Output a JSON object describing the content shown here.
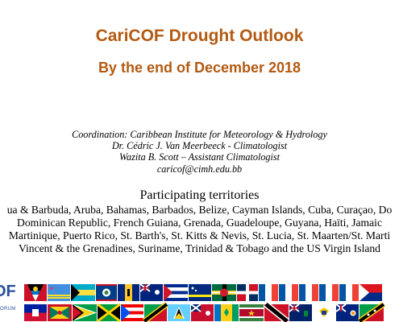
{
  "title": "CariCOF Drought Outlook",
  "subtitle": "By the end of December 2018",
  "credits": {
    "line1": "Coordination: Caribbean Institute for Meteorology & Hydrology",
    "line2": "Dr. Cédric J. Van Meerbeeck - Climatologist",
    "line3": "Wazita B. Scott – Assistant Climatologist",
    "line4": "caricof@cimh.edu.bb"
  },
  "territories": {
    "heading": "Participating territories",
    "lines": [
      "ua & Barbuda, Aruba, Bahamas, Barbados, Belize, Cayman Islands, Cuba, Curaçao, Do",
      "Dominican Republic, French Guiana, Grenada, Guadeloupe, Guyana, Haïti, Jamaic",
      "Martinique, Puerto Rico, St. Barth's, St. Kitts & Nevis, St. Lucia, St. Maarten/St. Marti",
      "Vincent & the Grenadines, Suriname, Trinidad & Tobago and the US Virgin Island"
    ]
  },
  "logo": {
    "text": "OF",
    "tagline": "ORUM"
  },
  "colors": {
    "title": "#b35a12",
    "logo": "#2a4f9c"
  }
}
